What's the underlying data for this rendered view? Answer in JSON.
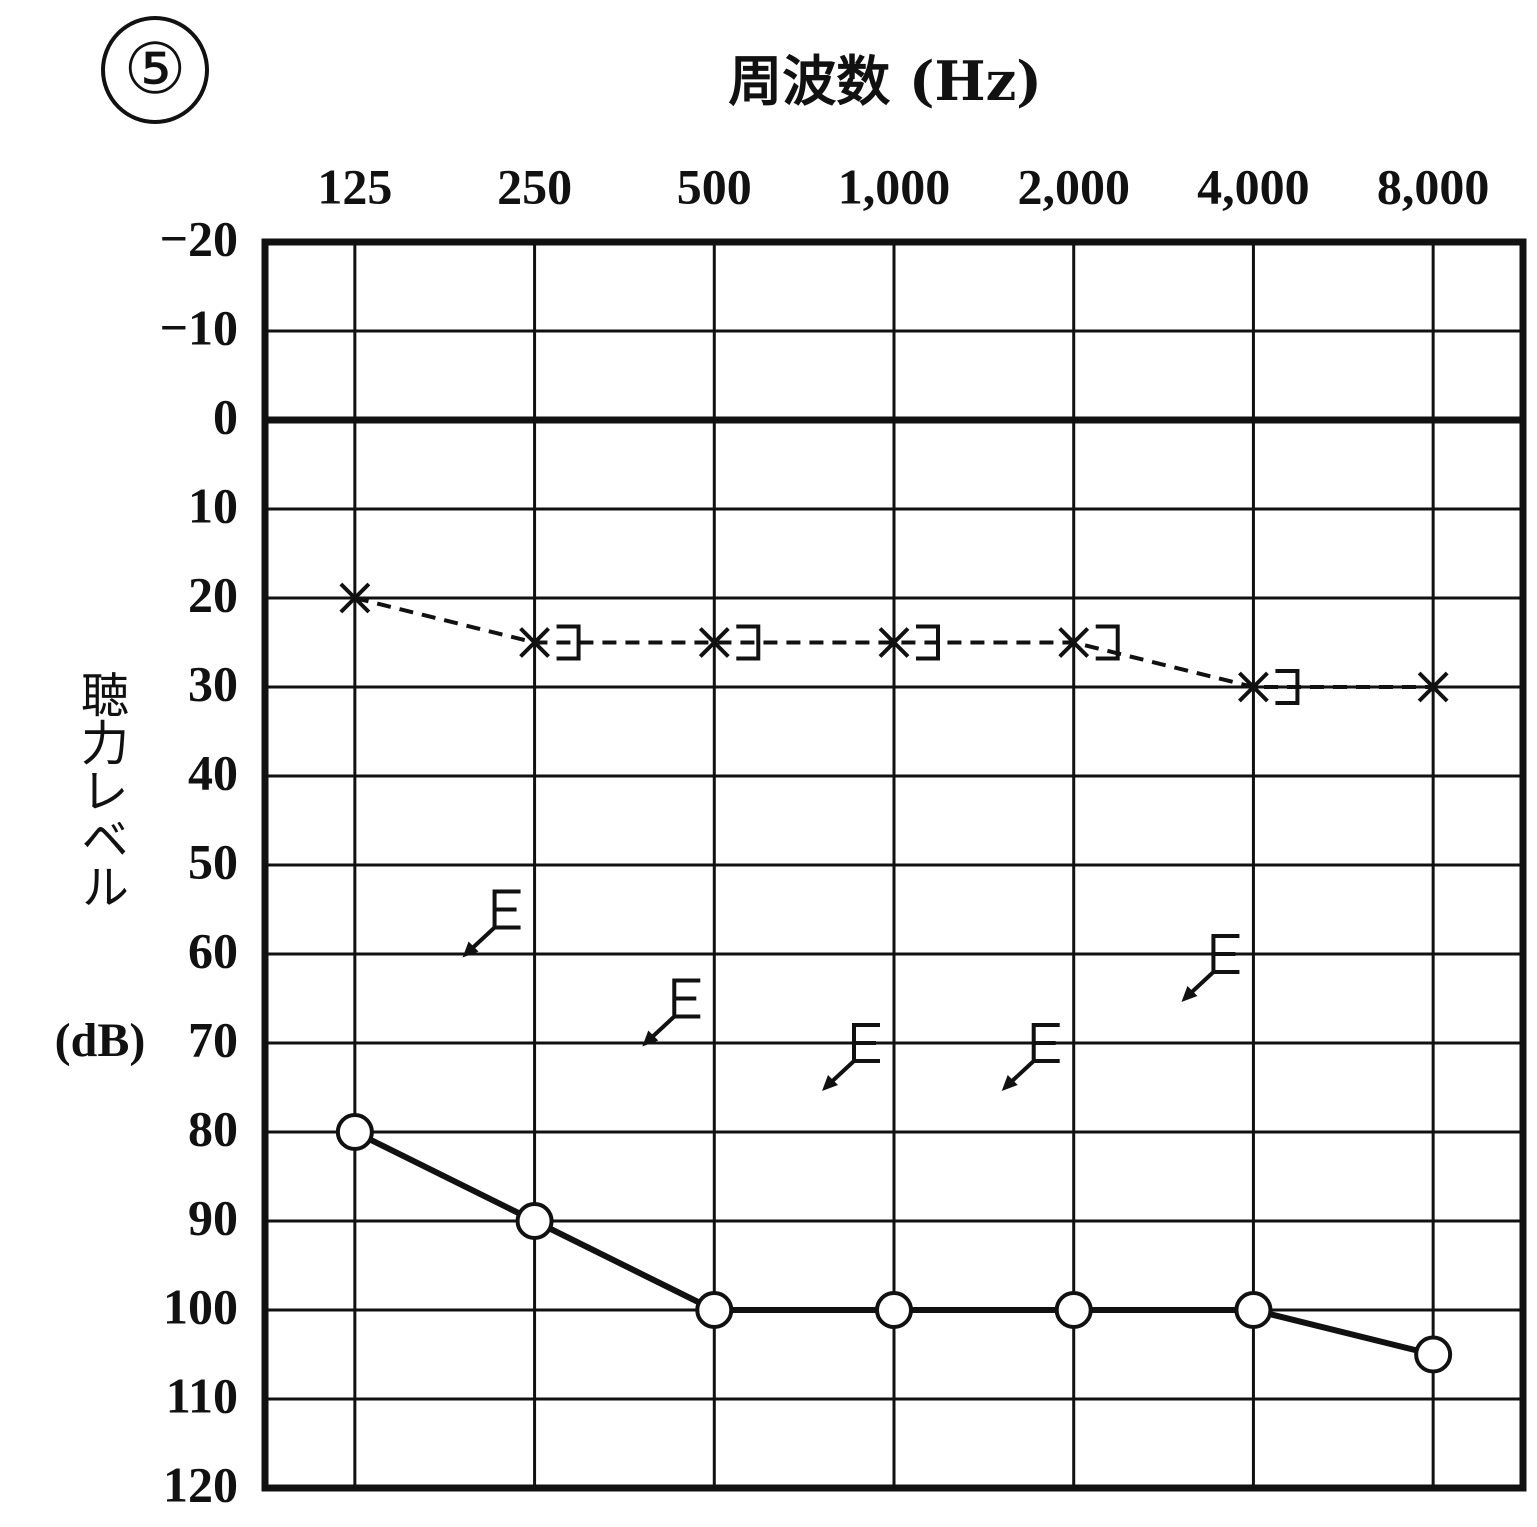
{
  "chart_data": {
    "type": "audiogram",
    "label": "⑤",
    "title": "周波数 (Hz)",
    "ylabel": "聴力レベル",
    "ylabel_unit": "(dB)",
    "categories": [
      "125",
      "250",
      "500",
      "1,000",
      "2,000",
      "4,000",
      "8,000"
    ],
    "ylim": [
      -20,
      120
    ],
    "y_inverted": true,
    "yticks": [
      {
        "value": -20,
        "label": "−20"
      },
      {
        "value": -10,
        "label": "−10"
      },
      0,
      10,
      20,
      30,
      40,
      50,
      60,
      70,
      80,
      90,
      100,
      110,
      120
    ],
    "grid": true,
    "series": [
      {
        "symbol": "circle",
        "line": "solid",
        "color": "#111111",
        "values": [
          80,
          90,
          100,
          100,
          100,
          100,
          105
        ]
      },
      {
        "symbol": "x",
        "line": "dashed",
        "color": "#111111",
        "values": [
          20,
          25,
          25,
          25,
          25,
          30,
          30
        ]
      },
      {
        "symbol": "right-bracket",
        "line": "none",
        "color": "#111111",
        "values": [
          null,
          25,
          25,
          25,
          25,
          30,
          null
        ]
      },
      {
        "symbol": "left-bracket-arrow",
        "line": "none",
        "color": "#111111",
        "values": [
          null,
          55,
          65,
          70,
          70,
          60,
          null
        ]
      }
    ]
  }
}
